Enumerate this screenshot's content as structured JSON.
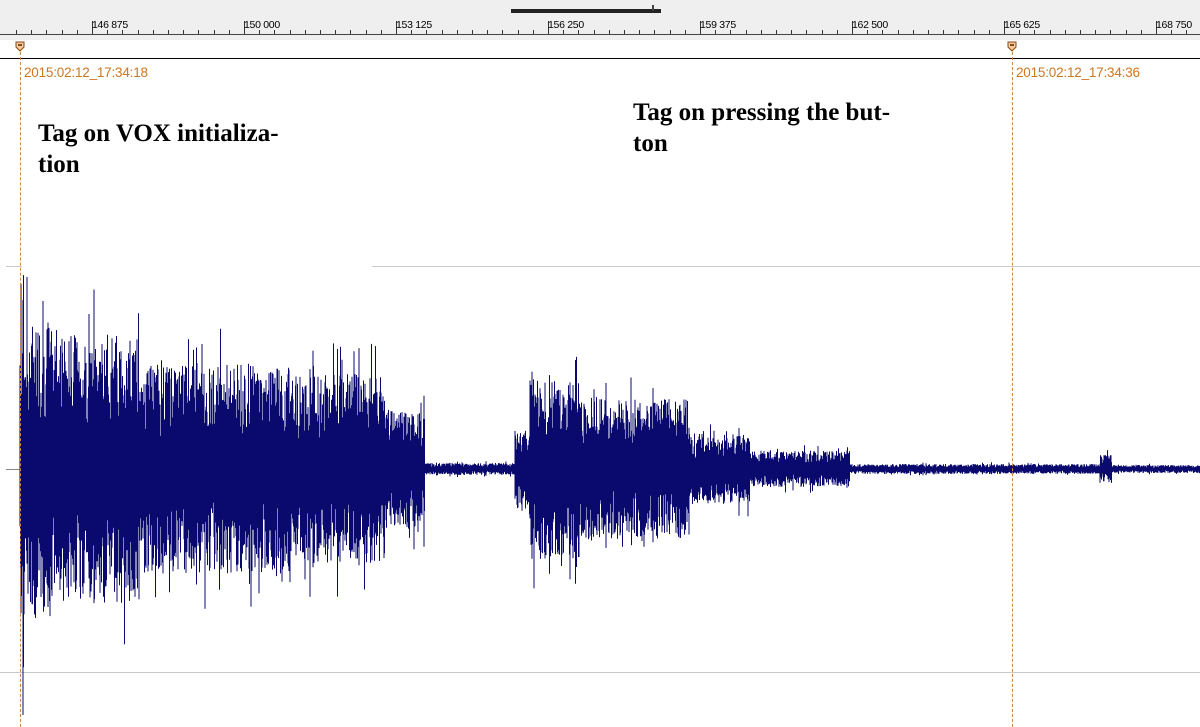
{
  "ruler": {
    "labels": [
      "146 875",
      "150 000",
      "153 125",
      "156 250",
      "159 375",
      "162 500",
      "165 625",
      "168 750"
    ]
  },
  "tags": [
    {
      "time": "2015:02:12_17:34:18"
    },
    {
      "time": "2015:02:12_17:34:36"
    }
  ],
  "annotations": {
    "vox_line1": "Tag on VOX initializa-",
    "vox_line2": "tion",
    "button_line1": "Tag on pressing the but-",
    "button_line2": "ton"
  },
  "colors": {
    "waveform": "#0a0a6e",
    "tag": "#cc7722",
    "ruler_bg": "#efefef",
    "grid": "#c9c9c9"
  }
}
